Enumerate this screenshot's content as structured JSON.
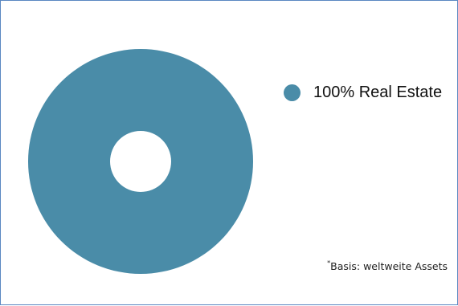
{
  "chart_data": {
    "type": "pie",
    "variant": "donut",
    "slices": [
      {
        "label": "100% Real Estate",
        "value": 100,
        "color": "#4a8ca8"
      }
    ],
    "legend_placement": "right"
  },
  "legend": {
    "items": [
      {
        "label": "100% Real Estate",
        "color": "#4a8ca8"
      }
    ]
  },
  "footnote": {
    "marker": "*",
    "text": "Basis: weltweite Assets"
  }
}
